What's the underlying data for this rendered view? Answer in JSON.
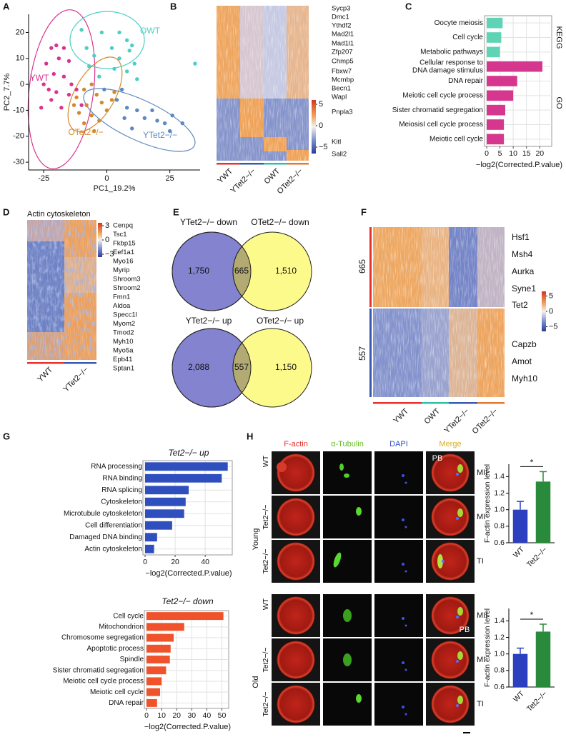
{
  "panel_labels": [
    "A",
    "B",
    "C",
    "D",
    "E",
    "F",
    "G",
    "H"
  ],
  "chart_data": [
    {
      "type": "scatter",
      "x_label": "PC1_19.2%",
      "y_label": "PC2_7.7%",
      "xlim": [
        -31,
        37
      ],
      "ylim": [
        -33,
        27
      ],
      "xticks": [
        -25,
        0,
        25
      ],
      "yticks": [
        -30,
        -20,
        -10,
        0,
        10,
        20
      ],
      "series": [
        {
          "name": "YWT",
          "color": "#d9338f",
          "x": [
            -22,
            -20,
            -17,
            -19,
            -24,
            -15,
            -21,
            -17,
            -25,
            -14,
            -20,
            -12,
            -22,
            -26,
            -18,
            -15,
            -10,
            -23
          ],
          "y": [
            14,
            15,
            14,
            10,
            8,
            9,
            4,
            3,
            0,
            0,
            -3,
            -2,
            -6,
            -9,
            -9,
            -4,
            -8,
            -2
          ]
        },
        {
          "name": "OWT",
          "color": "#4ccfc4",
          "x": [
            -10,
            -2,
            5,
            8,
            10,
            -8,
            2,
            9,
            -5,
            5,
            11,
            -7,
            3,
            8,
            -3,
            12,
            35
          ],
          "y": [
            21,
            20,
            20,
            17,
            15,
            14,
            14,
            13,
            11,
            10,
            8,
            7,
            6,
            5,
            3,
            2,
            8
          ]
        },
        {
          "name": "OTet2−/−",
          "color": "#d4882c",
          "x": [
            -12,
            -9,
            -6,
            -4,
            -8,
            -11,
            -6,
            -2,
            0,
            3,
            -3,
            -9,
            -5,
            2,
            -13
          ],
          "y": [
            -5,
            -2,
            0,
            -4,
            -8,
            -11,
            -12,
            -7,
            -10,
            -3,
            -14,
            -15,
            -18,
            -6,
            -8
          ]
        },
        {
          "name": "YTet2−/−",
          "color": "#5e88c2",
          "x": [
            4,
            8,
            12,
            7,
            18,
            20,
            23,
            26,
            15,
            10,
            25,
            30,
            -1,
            6
          ],
          "y": [
            -6,
            -9,
            -10,
            -13,
            -10,
            -14,
            -15,
            -12,
            -13,
            -17,
            -18,
            -15,
            -2,
            -2
          ]
        }
      ]
    },
    {
      "type": "barh",
      "x_label": "−log2(Corrected.P.value)",
      "categories": [
        "Oocyte meiosis",
        "Cell cycle",
        "Metabolic pathways",
        "Cellular response to DNA damage stimulus",
        "DNA repair",
        "Meiotic cell cycle process",
        "Sister chromatid segregation",
        "MeiosisI cell cycle process",
        "Meiotic cell cycle"
      ],
      "series": [
        {
          "name": "KEGG",
          "color": "#5fd4b4",
          "values": [
            6,
            5.5,
            5,
            null,
            null,
            null,
            null,
            null,
            null
          ]
        },
        {
          "name": "GO",
          "color": "#d6378e",
          "values": [
            null,
            null,
            null,
            21,
            11.5,
            10,
            7,
            6.5,
            6.5
          ]
        }
      ],
      "xlim": [
        0,
        24.5
      ],
      "xticks": [
        0,
        5,
        10,
        15,
        20
      ],
      "grid": true
    },
    {
      "type": "barh",
      "title": "Tet2−/− up",
      "x_label": "−log2(Corrected.P.value)",
      "categories": [
        "RNA processing",
        "RNA binding",
        "RNA splicing",
        "Cytoskeleton",
        "Microtubule cytoskeleton",
        "Cell differentiation",
        "Damaged DNA binding",
        "Actin cytoskeleton"
      ],
      "values": [
        55,
        51,
        29,
        27,
        26,
        18,
        8,
        6
      ],
      "color": "#2f4fbf",
      "xlim": [
        0,
        58
      ],
      "xticks": [
        0,
        20,
        40
      ],
      "grid": true
    },
    {
      "type": "barh",
      "title": "Tet2−/− down",
      "x_label": "−log2(Corrected.P.value)",
      "categories": [
        "Cell cycle",
        "Mitochondrion",
        "Chromosome segregation",
        "Apoptotic process",
        "Spindle",
        "Sister chromatid segregation",
        "Meiotic cell cycle process",
        "Meiotic cell cycle",
        "DNA repair"
      ],
      "values": [
        51,
        25,
        18,
        16,
        15.5,
        13,
        10,
        9,
        7
      ],
      "color": "#f0532c",
      "xlim": [
        0,
        54.5
      ],
      "xticks": [
        0,
        10,
        20,
        30,
        40,
        50
      ],
      "grid": true
    },
    {
      "type": "bar",
      "y_label": "F-actin expression level",
      "categories": [
        "WT",
        "Tet2−/−"
      ],
      "values": [
        1,
        1.34
      ],
      "errors": [
        0.1,
        0.12
      ],
      "colors": [
        "#2c3fbf",
        "#2a8a3c"
      ],
      "ylim": [
        0.6,
        1.55
      ],
      "yticks": [
        0.6,
        0.8,
        {
          "value": 1,
          "label": "1.0"
        },
        1.2,
        1.4
      ],
      "annotation": "*"
    },
    {
      "type": "bar",
      "y_label": "F-actin expression level",
      "categories": [
        "WT",
        "Tet2−/−"
      ],
      "values": [
        1,
        1.27
      ],
      "errors": [
        0.07,
        0.09
      ],
      "colors": [
        "#2c3fbf",
        "#2a8a3c"
      ],
      "ylim": [
        0.6,
        1.55
      ],
      "yticks": [
        0.6,
        0.8,
        {
          "value": 1,
          "label": "1.0"
        },
        1.2,
        1.4
      ],
      "annotation": "*"
    }
  ],
  "heatmap_b": {
    "genes": [
      "Sycp3",
      "Dmc1",
      "Ythdf2",
      "Mad2l1",
      "Mad1l1",
      "Zfp207",
      "Chmp5",
      "Fbxw7",
      "Mcmbp",
      "Becn1",
      "Wapl",
      "Pnpla3",
      "Kitl",
      "Sall2"
    ],
    "columns": [
      "YWT",
      "YTet2−/−",
      "OWT",
      "OTet2−/−"
    ],
    "colorbar_lim": [
      -6.5,
      6
    ],
    "colorbar_ticks": [
      5,
      0,
      {
        "value": -5,
        "label": "−5"
      }
    ]
  },
  "heatmap_d": {
    "title": "Actin cytoskeleton",
    "genes": [
      "Cenpq",
      "Tsc1",
      "Fkbp15",
      "Eef1a1",
      "Myo16",
      "Myrip",
      "Shroom3",
      "Shroom2",
      "Fmn1",
      "Aldoa",
      "Specc1l",
      "Myom2",
      "Tmod2",
      "Myh10",
      "Myo5a",
      "Epb41",
      "Sptan1"
    ],
    "columns": [
      "YWT",
      "YTet2−/−"
    ],
    "colorbar_lim": [
      -3.6,
      3.6
    ],
    "colorbar_ticks": [
      3,
      0,
      {
        "value": -3,
        "label": "−3"
      }
    ]
  },
  "venn": [
    {
      "left": "YTet2−/− down",
      "right": "OTet2−/− down",
      "left_only": "1,750",
      "both": "665",
      "right_only": "1,510"
    },
    {
      "left": "YTet2−/− up",
      "right": "OTet2−/− up",
      "left_only": "2,088",
      "both": "557",
      "right_only": "1,150"
    }
  ],
  "heatmap_f": {
    "row_groups": [
      "665",
      "557"
    ],
    "genes": [
      "Hsf1",
      "Msh4",
      "Aurka",
      "Syne1",
      "Tet2",
      "Capzb",
      "Amot",
      "Myh10"
    ],
    "columns": [
      "YWT",
      "OWT",
      "YTet2−/−",
      "OTet2−/−"
    ],
    "colorbar_lim": [
      -6.5,
      6.5
    ],
    "colorbar_ticks": [
      5,
      0,
      {
        "value": -5,
        "label": "−5"
      }
    ]
  },
  "microscopy": {
    "channels": [
      "F-actin",
      "α-Tubulin",
      "DAPI",
      "Merge"
    ],
    "groups": [
      {
        "name": "Young",
        "rows": [
          {
            "genotype": "WT",
            "stage": "MII"
          },
          {
            "genotype": "Tet2−/−",
            "stage": "MI"
          },
          {
            "genotype": "Tet2−/−",
            "stage": "TI"
          }
        ]
      },
      {
        "name": "Old",
        "rows": [
          {
            "genotype": "WT",
            "stage": "MII"
          },
          {
            "genotype": "Tet2−/−",
            "stage": "MI"
          },
          {
            "genotype": "Tet2−/−",
            "stage": "TI"
          }
        ]
      }
    ],
    "pb_labels": [
      "PB",
      "PB"
    ]
  }
}
